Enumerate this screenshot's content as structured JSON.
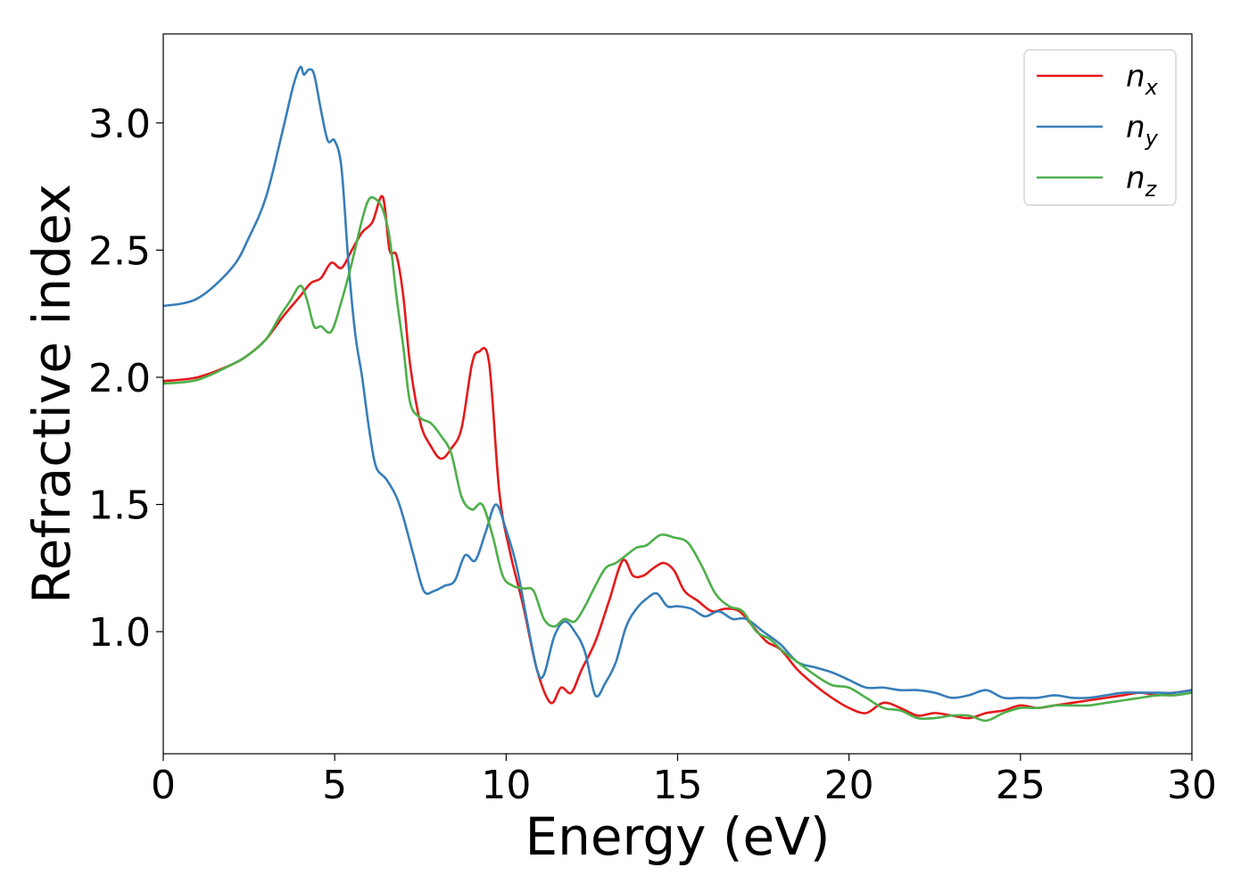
{
  "chart_data": {
    "type": "line",
    "title": "",
    "xlabel": "Energy (eV)",
    "ylabel": "Refractive index",
    "xlim": [
      0,
      30
    ],
    "ylim": [
      0.52,
      3.35
    ],
    "xticks": [
      0,
      5,
      10,
      15,
      20,
      25,
      30
    ],
    "xtick_labels": [
      "0",
      "5",
      "10",
      "15",
      "20",
      "25",
      "30"
    ],
    "yticks": [
      1.0,
      1.5,
      2.0,
      2.5,
      3.0
    ],
    "ytick_labels": [
      "1.0",
      "1.5",
      "2.0",
      "2.5",
      "3.0"
    ],
    "grid": false,
    "legend_position": "top-right",
    "series": [
      {
        "name": "n",
        "subscript": "x",
        "color": "#e41a1c",
        "x": [
          0,
          1,
          2,
          2.5,
          3,
          3.5,
          4,
          4.3,
          4.6,
          4.9,
          5.2,
          5.5,
          5.8,
          6.1,
          6.4,
          6.6,
          6.8,
          7.0,
          7.2,
          7.5,
          7.8,
          8.1,
          8.4,
          8.7,
          9.0,
          9.2,
          9.5,
          9.8,
          10.1,
          10.5,
          10.9,
          11.3,
          11.6,
          11.9,
          12.2,
          12.6,
          13.0,
          13.4,
          13.7,
          14.0,
          14.3,
          14.6,
          14.9,
          15.2,
          15.6,
          16.0,
          16.4,
          16.8,
          17.2,
          17.6,
          18.0,
          18.5,
          19.0,
          19.5,
          20.0,
          20.5,
          21.0,
          21.5,
          22.0,
          22.5,
          23.0,
          23.5,
          24.0,
          24.5,
          25.0,
          25.5,
          26.0,
          26.5,
          27.0,
          27.5,
          28.0,
          28.5,
          29.0,
          29.5,
          30.0
        ],
        "y": [
          1.985,
          2.0,
          2.05,
          2.09,
          2.15,
          2.24,
          2.32,
          2.37,
          2.39,
          2.45,
          2.43,
          2.5,
          2.57,
          2.61,
          2.71,
          2.5,
          2.48,
          2.32,
          2.05,
          1.82,
          1.73,
          1.68,
          1.72,
          1.8,
          2.05,
          2.1,
          2.06,
          1.55,
          1.32,
          1.1,
          0.85,
          0.72,
          0.78,
          0.76,
          0.85,
          0.96,
          1.12,
          1.28,
          1.22,
          1.22,
          1.25,
          1.27,
          1.24,
          1.16,
          1.12,
          1.08,
          1.09,
          1.08,
          1.02,
          0.96,
          0.93,
          0.85,
          0.79,
          0.74,
          0.7,
          0.68,
          0.72,
          0.7,
          0.67,
          0.68,
          0.67,
          0.66,
          0.68,
          0.69,
          0.71,
          0.7,
          0.71,
          0.72,
          0.73,
          0.74,
          0.75,
          0.76,
          0.75,
          0.76,
          0.77
        ]
      },
      {
        "name": "n",
        "subscript": "y",
        "color": "#377eb8",
        "x": [
          0,
          1,
          2,
          2.5,
          3,
          3.5,
          3.8,
          4.0,
          4.1,
          4.25,
          4.4,
          4.6,
          4.8,
          5.0,
          5.2,
          5.4,
          5.6,
          5.8,
          6.0,
          6.2,
          6.5,
          6.8,
          7.0,
          7.3,
          7.6,
          7.9,
          8.2,
          8.5,
          8.8,
          9.1,
          9.4,
          9.7,
          10.0,
          10.3,
          10.6,
          10.9,
          11.1,
          11.4,
          11.7,
          12.0,
          12.3,
          12.6,
          12.9,
          13.2,
          13.5,
          13.8,
          14.1,
          14.4,
          14.7,
          15.0,
          15.4,
          15.8,
          16.2,
          16.6,
          17.0,
          17.5,
          18.0,
          18.5,
          19.0,
          19.5,
          20.0,
          20.5,
          21.0,
          21.5,
          22.0,
          22.5,
          23.0,
          23.5,
          24.0,
          24.5,
          25.0,
          25.5,
          26.0,
          26.5,
          27.0,
          27.5,
          28.0,
          28.5,
          29.0,
          29.5,
          30.0
        ],
        "y": [
          2.28,
          2.31,
          2.43,
          2.55,
          2.71,
          2.98,
          3.15,
          3.22,
          3.19,
          3.21,
          3.19,
          3.05,
          2.93,
          2.93,
          2.82,
          2.45,
          2.17,
          2.0,
          1.8,
          1.65,
          1.6,
          1.53,
          1.45,
          1.3,
          1.16,
          1.16,
          1.18,
          1.2,
          1.3,
          1.28,
          1.39,
          1.5,
          1.4,
          1.26,
          1.05,
          0.85,
          0.83,
          0.98,
          1.04,
          1.0,
          0.92,
          0.75,
          0.8,
          0.88,
          1.02,
          1.09,
          1.13,
          1.15,
          1.1,
          1.1,
          1.09,
          1.06,
          1.08,
          1.05,
          1.05,
          1.0,
          0.95,
          0.88,
          0.86,
          0.84,
          0.81,
          0.78,
          0.78,
          0.77,
          0.77,
          0.76,
          0.74,
          0.75,
          0.77,
          0.74,
          0.74,
          0.74,
          0.75,
          0.74,
          0.74,
          0.75,
          0.76,
          0.76,
          0.76,
          0.76,
          0.77
        ]
      },
      {
        "name": "n",
        "subscript": "z",
        "color": "#4daf4a",
        "x": [
          0,
          1,
          2,
          2.5,
          3,
          3.4,
          3.7,
          4.0,
          4.2,
          4.4,
          4.6,
          4.9,
          5.2,
          5.5,
          5.8,
          6.0,
          6.2,
          6.4,
          6.6,
          6.8,
          7.0,
          7.2,
          7.5,
          7.8,
          8.1,
          8.4,
          8.7,
          9.0,
          9.3,
          9.6,
          9.9,
          10.2,
          10.5,
          10.8,
          11.1,
          11.4,
          11.7,
          12.0,
          12.3,
          12.6,
          12.9,
          13.2,
          13.5,
          13.8,
          14.1,
          14.5,
          14.9,
          15.3,
          15.7,
          16.1,
          16.5,
          16.9,
          17.3,
          17.7,
          18.1,
          18.5,
          19.0,
          19.5,
          20.0,
          20.5,
          21.0,
          21.5,
          22.0,
          22.5,
          23.0,
          23.5,
          24.0,
          24.5,
          25.0,
          25.5,
          26.0,
          26.5,
          27.0,
          27.5,
          28.0,
          28.5,
          29.0,
          29.5,
          30.0
        ],
        "y": [
          1.975,
          1.99,
          2.05,
          2.09,
          2.15,
          2.24,
          2.3,
          2.36,
          2.3,
          2.2,
          2.2,
          2.18,
          2.3,
          2.45,
          2.62,
          2.7,
          2.7,
          2.66,
          2.55,
          2.32,
          2.12,
          1.9,
          1.84,
          1.82,
          1.77,
          1.7,
          1.53,
          1.48,
          1.5,
          1.38,
          1.22,
          1.18,
          1.17,
          1.16,
          1.05,
          1.02,
          1.05,
          1.04,
          1.1,
          1.18,
          1.25,
          1.27,
          1.3,
          1.33,
          1.34,
          1.38,
          1.37,
          1.35,
          1.26,
          1.15,
          1.1,
          1.08,
          1.0,
          0.97,
          0.92,
          0.88,
          0.83,
          0.79,
          0.78,
          0.74,
          0.7,
          0.69,
          0.66,
          0.66,
          0.67,
          0.67,
          0.65,
          0.68,
          0.7,
          0.7,
          0.71,
          0.71,
          0.71,
          0.72,
          0.73,
          0.74,
          0.75,
          0.75,
          0.76
        ]
      }
    ]
  }
}
